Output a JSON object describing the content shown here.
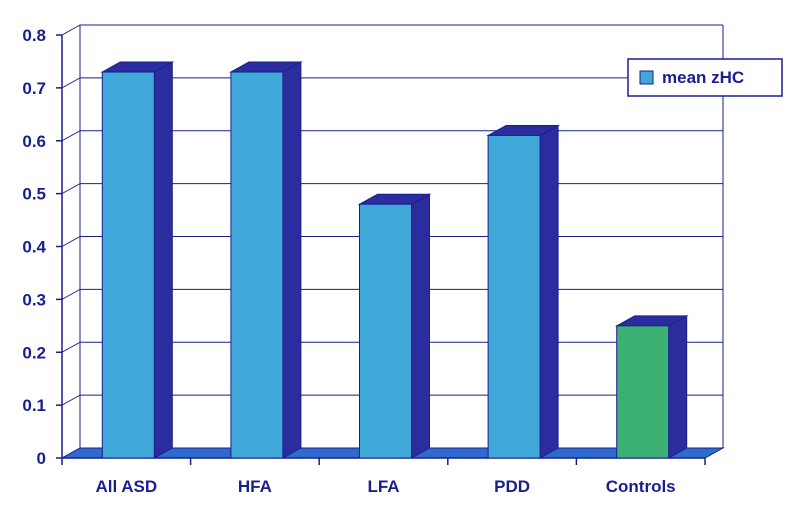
{
  "chart_data": {
    "type": "bar",
    "style": "3d",
    "categories": [
      "All ASD",
      "HFA",
      "LFA",
      "PDD",
      "Controls"
    ],
    "series": [
      {
        "name": "mean zHC",
        "values": [
          0.73,
          0.73,
          0.48,
          0.61,
          0.25
        ],
        "color": "#40a8d8",
        "highlight": {
          "index": 4,
          "color": "#3cb073"
        }
      }
    ],
    "ylim": [
      0,
      0.8
    ],
    "yticks": [
      "0",
      "0.1",
      "0.2",
      "0.3",
      "0.4",
      "0.5",
      "0.6",
      "0.7",
      "0.8"
    ],
    "grid": true,
    "legend": {
      "position": "top-right"
    },
    "colors": {
      "text": "#1a1f8f",
      "axis": "#1a1f8f",
      "grid": "#1a1f8f",
      "bar_side": "#2b2d9e",
      "floor": "#2d6ccc"
    }
  }
}
